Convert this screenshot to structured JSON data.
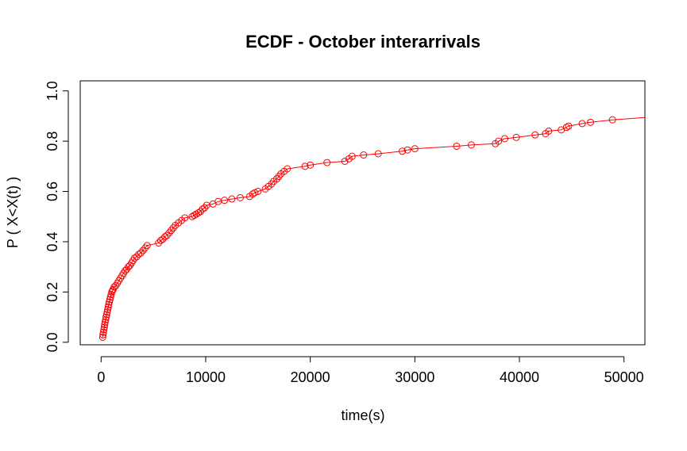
{
  "chart_data": {
    "type": "line",
    "title": "ECDF - October interarrivals",
    "xlabel": "time(s)",
    "ylabel": "P ( X<X(t) )",
    "xlim": [
      -2000,
      52000
    ],
    "ylim": [
      -0.01,
      1.04
    ],
    "x_ticks": [
      0,
      10000,
      20000,
      30000,
      40000,
      50000
    ],
    "x_tick_labels": [
      "0",
      "10000",
      "20000",
      "30000",
      "40000",
      "50000"
    ],
    "y_ticks": [
      0.0,
      0.2,
      0.4,
      0.6,
      0.8,
      1.0
    ],
    "y_tick_labels": [
      "0.0",
      "0.2",
      "0.4",
      "0.6",
      "0.8",
      "1.0"
    ],
    "grid": false,
    "legend": false,
    "colors": {
      "series": "#ff0000",
      "axes": "#000000",
      "background": "#ffffff"
    },
    "line_extends_to": [
      52000,
      0.894
    ],
    "series": [
      {
        "x": [
          150,
          180,
          220,
          260,
          300,
          340,
          380,
          430,
          480,
          530,
          580,
          630,
          680,
          730,
          780,
          840,
          900,
          960,
          1020,
          1080,
          1150,
          1250,
          1400,
          1550,
          1700,
          1850,
          2000,
          2150,
          2300,
          2450,
          2600,
          2750,
          2900,
          3050,
          3200,
          3400,
          3600,
          3800,
          4000,
          4200,
          4400,
          5500,
          5700,
          5900,
          6100,
          6300,
          6500,
          6700,
          6900,
          7100,
          7400,
          7700,
          8000,
          8700,
          8900,
          9100,
          9300,
          9500,
          9700,
          9900,
          10100,
          10700,
          11200,
          11800,
          12500,
          13300,
          14200,
          14500,
          14700,
          15000,
          15700,
          16000,
          16300,
          16500,
          16800,
          17000,
          17200,
          17500,
          17800,
          19500,
          20000,
          21600,
          23300,
          23700,
          24000,
          25100,
          26500,
          28800,
          29300,
          30000,
          34000,
          35400,
          37700,
          38000,
          38600,
          39700,
          41500,
          42500,
          42800,
          44000,
          44500,
          44700,
          46000,
          46800,
          48900
        ],
        "y": [
          0.02,
          0.03,
          0.04,
          0.05,
          0.06,
          0.07,
          0.08,
          0.09,
          0.1,
          0.11,
          0.12,
          0.13,
          0.14,
          0.15,
          0.16,
          0.17,
          0.18,
          0.19,
          0.2,
          0.205,
          0.21,
          0.22,
          0.225,
          0.235,
          0.245,
          0.255,
          0.265,
          0.275,
          0.285,
          0.29,
          0.3,
          0.305,
          0.315,
          0.325,
          0.335,
          0.34,
          0.35,
          0.355,
          0.365,
          0.375,
          0.385,
          0.395,
          0.405,
          0.41,
          0.42,
          0.425,
          0.435,
          0.445,
          0.455,
          0.465,
          0.475,
          0.485,
          0.495,
          0.5,
          0.505,
          0.51,
          0.515,
          0.52,
          0.53,
          0.535,
          0.545,
          0.55,
          0.56,
          0.565,
          0.57,
          0.575,
          0.58,
          0.59,
          0.595,
          0.6,
          0.61,
          0.62,
          0.63,
          0.64,
          0.65,
          0.66,
          0.67,
          0.68,
          0.69,
          0.7,
          0.705,
          0.715,
          0.72,
          0.73,
          0.74,
          0.745,
          0.75,
          0.76,
          0.765,
          0.77,
          0.78,
          0.785,
          0.79,
          0.8,
          0.81,
          0.815,
          0.825,
          0.83,
          0.84,
          0.845,
          0.855,
          0.86,
          0.87,
          0.875,
          0.885
        ]
      }
    ]
  }
}
